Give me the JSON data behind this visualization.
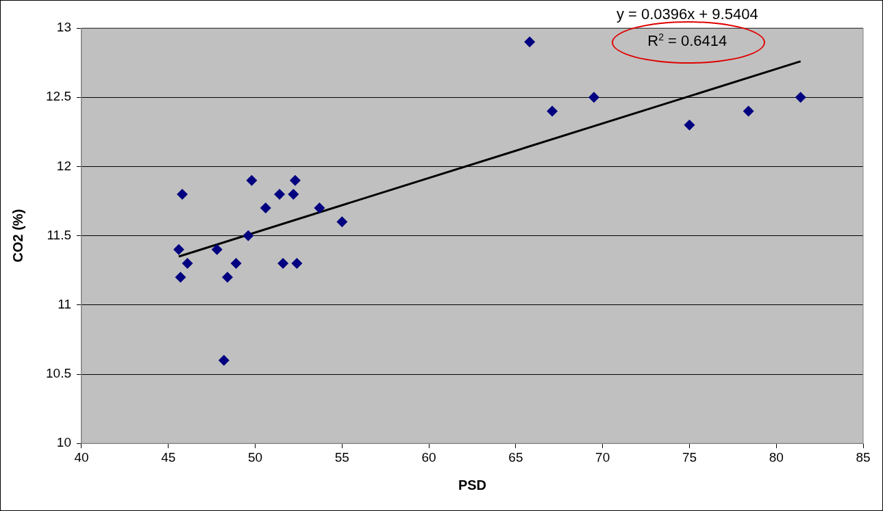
{
  "chart_data": {
    "type": "scatter",
    "xlabel": "PSD",
    "ylabel": "CO2 (%)",
    "xlim": [
      40,
      85
    ],
    "xticks": [
      40,
      45,
      50,
      55,
      60,
      65,
      70,
      75,
      80,
      85
    ],
    "ylim": [
      10,
      13
    ],
    "yticks": [
      10,
      10.5,
      11,
      11.5,
      12,
      12.5,
      13
    ],
    "grid": "y",
    "legend": false,
    "series": [
      {
        "type": "scatter",
        "marker": "diamond",
        "color": "#000080",
        "x": [
          45.6,
          45.7,
          45.8,
          46.1,
          47.8,
          48.4,
          48.2,
          48.9,
          49.6,
          49.8,
          50.6,
          51.4,
          51.6,
          52.2,
          52.3,
          52.4,
          53.7,
          55.0,
          65.8,
          67.1,
          69.5,
          75.0,
          78.4,
          81.4
        ],
        "values": [
          11.4,
          11.2,
          11.8,
          11.3,
          11.4,
          11.2,
          10.6,
          11.3,
          11.5,
          11.9,
          11.7,
          11.8,
          11.3,
          11.8,
          11.9,
          11.3,
          11.7,
          11.6,
          12.9,
          12.4,
          12.5,
          12.3,
          12.4,
          12.5
        ]
      },
      {
        "type": "line",
        "marker": "none",
        "line_style": "solid",
        "color": "#000000",
        "x": [
          45.6,
          81.4
        ],
        "values": [
          11.35,
          12.76
        ]
      }
    ],
    "annotations": [
      "y = 0.0396x + 9.5404",
      "R$^{2}$ = 0.6414"
    ]
  }
}
